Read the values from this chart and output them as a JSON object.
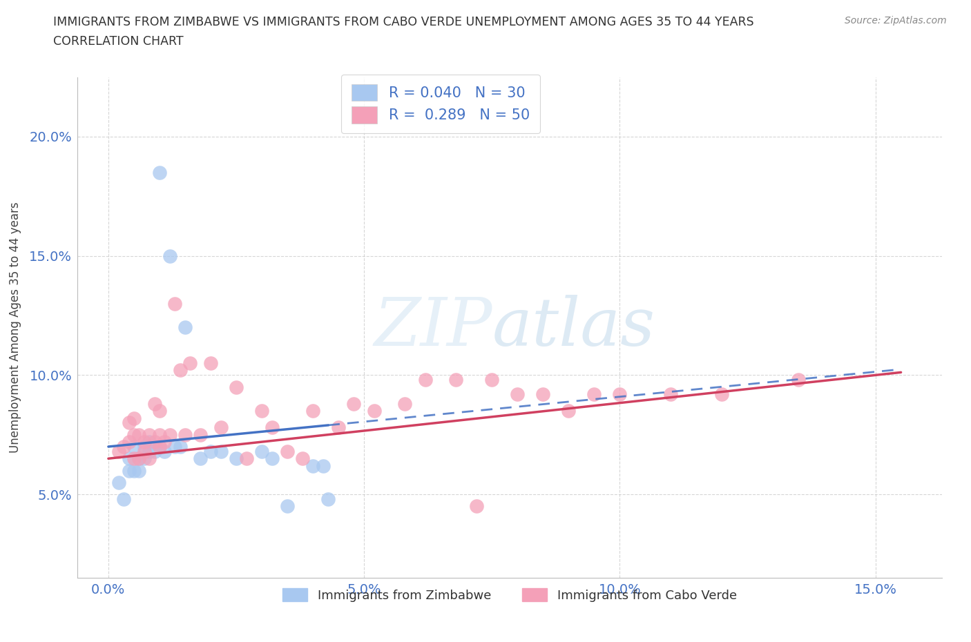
{
  "title_line1": "IMMIGRANTS FROM ZIMBABWE VS IMMIGRANTS FROM CABO VERDE UNEMPLOYMENT AMONG AGES 35 TO 44 YEARS",
  "title_line2": "CORRELATION CHART",
  "source": "Source: ZipAtlas.com",
  "ylabel_label": "Unemployment Among Ages 35 to 44 years",
  "x_ticks": [
    0.0,
    0.05,
    0.1,
    0.15
  ],
  "x_tick_labels": [
    "0.0%",
    "5.0%",
    "10.0%",
    "15.0%"
  ],
  "y_ticks": [
    0.05,
    0.1,
    0.15,
    0.2
  ],
  "y_tick_labels": [
    "5.0%",
    "10.0%",
    "15.0%",
    "20.0%"
  ],
  "xlim": [
    -0.006,
    0.163
  ],
  "ylim": [
    0.015,
    0.225
  ],
  "zimbabwe_color": "#a8c8f0",
  "caboverde_color": "#f4a0b8",
  "zimbabwe_line_color": "#4472c4",
  "caboverde_line_color": "#d04060",
  "R_zimbabwe": 0.04,
  "N_zimbabwe": 30,
  "R_caboverde": 0.289,
  "N_caboverde": 50,
  "legend_label_zimbabwe": "Immigrants from Zimbabwe",
  "legend_label_caboverde": "Immigrants from Cabo Verde",
  "watermark_zip": "ZIP",
  "watermark_atlas": "atlas",
  "zimbabwe_x": [
    0.002,
    0.003,
    0.004,
    0.004,
    0.005,
    0.005,
    0.006,
    0.006,
    0.007,
    0.007,
    0.008,
    0.008,
    0.009,
    0.01,
    0.01,
    0.011,
    0.012,
    0.013,
    0.014,
    0.015,
    0.018,
    0.02,
    0.022,
    0.025,
    0.03,
    0.032,
    0.035,
    0.04,
    0.042,
    0.043
  ],
  "zimbabwe_y": [
    0.055,
    0.048,
    0.06,
    0.065,
    0.07,
    0.06,
    0.065,
    0.06,
    0.07,
    0.065,
    0.072,
    0.068,
    0.068,
    0.07,
    0.185,
    0.068,
    0.15,
    0.07,
    0.07,
    0.12,
    0.065,
    0.068,
    0.068,
    0.065,
    0.068,
    0.065,
    0.045,
    0.062,
    0.062,
    0.048
  ],
  "caboverde_x": [
    0.002,
    0.003,
    0.004,
    0.004,
    0.005,
    0.005,
    0.005,
    0.006,
    0.006,
    0.007,
    0.007,
    0.008,
    0.008,
    0.009,
    0.009,
    0.01,
    0.01,
    0.01,
    0.011,
    0.012,
    0.013,
    0.014,
    0.015,
    0.016,
    0.018,
    0.02,
    0.022,
    0.025,
    0.027,
    0.03,
    0.032,
    0.035,
    0.038,
    0.04,
    0.045,
    0.048,
    0.052,
    0.058,
    0.062,
    0.068,
    0.072,
    0.075,
    0.08,
    0.085,
    0.09,
    0.095,
    0.1,
    0.11,
    0.12,
    0.135
  ],
  "caboverde_y": [
    0.068,
    0.07,
    0.072,
    0.08,
    0.065,
    0.075,
    0.082,
    0.065,
    0.075,
    0.068,
    0.072,
    0.065,
    0.075,
    0.072,
    0.088,
    0.07,
    0.075,
    0.085,
    0.072,
    0.075,
    0.13,
    0.102,
    0.075,
    0.105,
    0.075,
    0.105,
    0.078,
    0.095,
    0.065,
    0.085,
    0.078,
    0.068,
    0.065,
    0.085,
    0.078,
    0.088,
    0.085,
    0.088,
    0.098,
    0.098,
    0.045,
    0.098,
    0.092,
    0.092,
    0.085,
    0.092,
    0.092,
    0.092,
    0.092,
    0.098
  ]
}
